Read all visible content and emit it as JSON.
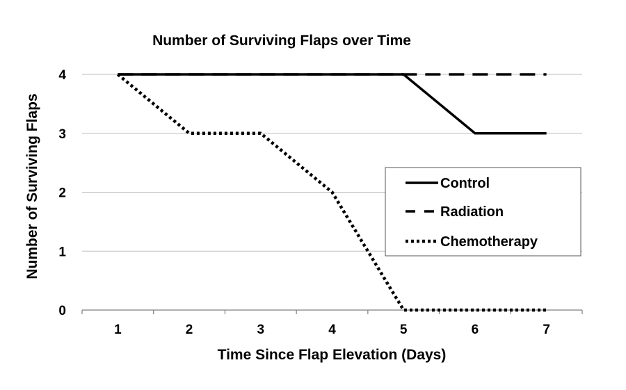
{
  "chart_data": {
    "type": "line",
    "title": "Number of Surviving Flaps over Time",
    "xlabel": "Time Since Flap Elevation (Days)",
    "ylabel": "Number of Surviving Flaps",
    "x": [
      1,
      2,
      3,
      4,
      5,
      6,
      7
    ],
    "xlim": [
      0.5,
      7.5
    ],
    "ylim": [
      0,
      4
    ],
    "y_ticks": [
      0,
      1,
      2,
      3,
      4
    ],
    "grid": true,
    "legend_position": "right",
    "series": [
      {
        "name": "Control",
        "values": [
          4,
          4,
          4,
          4,
          4,
          3,
          3
        ],
        "line_style": "solid",
        "color": "#000000"
      },
      {
        "name": "Radiation",
        "values": [
          4,
          4,
          4,
          4,
          4,
          4,
          4
        ],
        "line_style": "dashed",
        "color": "#000000"
      },
      {
        "name": "Chemotherapy",
        "values": [
          4,
          3,
          3,
          2,
          0,
          0,
          0
        ],
        "line_style": "dotted",
        "color": "#000000"
      }
    ]
  }
}
